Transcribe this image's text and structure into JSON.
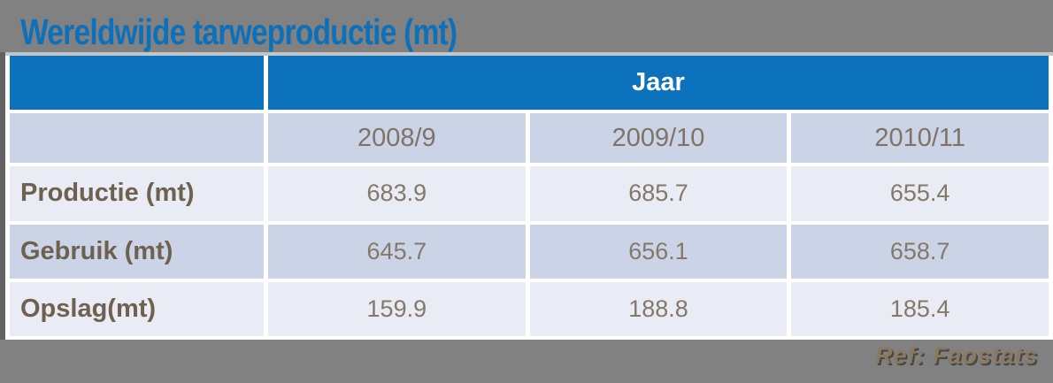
{
  "title": "Wereldwijde tarweproductie (mt)",
  "table": {
    "group_header": "Jaar",
    "year_columns": [
      "2008/9",
      "2009/10",
      "2010/11"
    ],
    "rows": [
      {
        "label": "Productie (mt)",
        "values": [
          "683.9",
          "685.7",
          "655.4"
        ]
      },
      {
        "label": "Gebruik (mt)",
        "values": [
          "645.7",
          "656.1",
          "658.7"
        ]
      },
      {
        "label": "Opslag(mt)",
        "values": [
          "159.9",
          "188.8",
          "185.4"
        ]
      }
    ]
  },
  "footer": {
    "ref_label": "Ref: Faostats"
  },
  "colors": {
    "background": "#818181",
    "title_blue": "#0d70bb",
    "header_blue": "#0d72bc",
    "row_light": "#e9ecf4",
    "row_dark": "#cbd4e6",
    "label_text": "#6e6150",
    "value_text": "#847969",
    "ref_text": "#8a795e"
  },
  "chart_data": {
    "type": "table",
    "title": "Wereldwijde tarweproductie (mt)",
    "column_group_label": "Jaar",
    "categories": [
      "2008/9",
      "2009/10",
      "2010/11"
    ],
    "series": [
      {
        "name": "Productie (mt)",
        "values": [
          683.9,
          685.7,
          655.4
        ]
      },
      {
        "name": "Gebruik (mt)",
        "values": [
          645.7,
          656.1,
          658.7
        ]
      },
      {
        "name": "Opslag(mt)",
        "values": [
          159.9,
          188.8,
          185.4
        ]
      }
    ],
    "source": "Ref: Faostats",
    "units": "million tonnes (mt)"
  }
}
